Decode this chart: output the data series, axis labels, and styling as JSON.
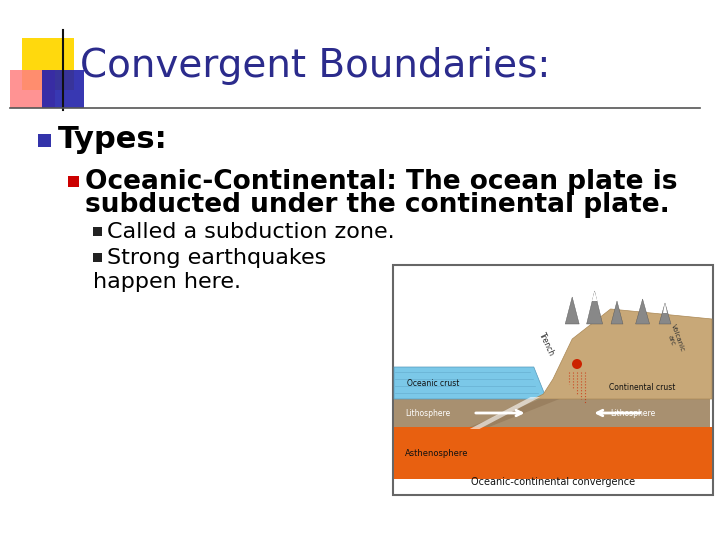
{
  "title": "Convergent Boundaries:",
  "title_color": "#2B2B8C",
  "title_fontsize": 28,
  "bg_color": "#FFFFFF",
  "bullet1": "Types:",
  "bullet1_fontsize": 22,
  "bullet1_color": "#000000",
  "bullet1_marker_color": "#3333AA",
  "bullet2_line1": "Oceanic-Continental: The ocean plate is",
  "bullet2_line2": "subducted under the continental plate.",
  "bullet2_fontsize": 19,
  "bullet2_color": "#000000",
  "bullet2_marker_color": "#CC0000",
  "sub_bullet1": "Called a subduction zone.",
  "sub_bullet2": "Strong earthquakes",
  "sub_bullet3": "happen here.",
  "sub_bullet_fontsize": 16,
  "sub_bullet_color": "#000000",
  "sub_bullet_marker_color": "#222222",
  "header_line_color": "#555555",
  "accent_yellow": "#FFD700",
  "accent_pink": "#FF8080",
  "accent_blue": "#2222AA",
  "diagram_caption": "Oceanic-continental convergence"
}
